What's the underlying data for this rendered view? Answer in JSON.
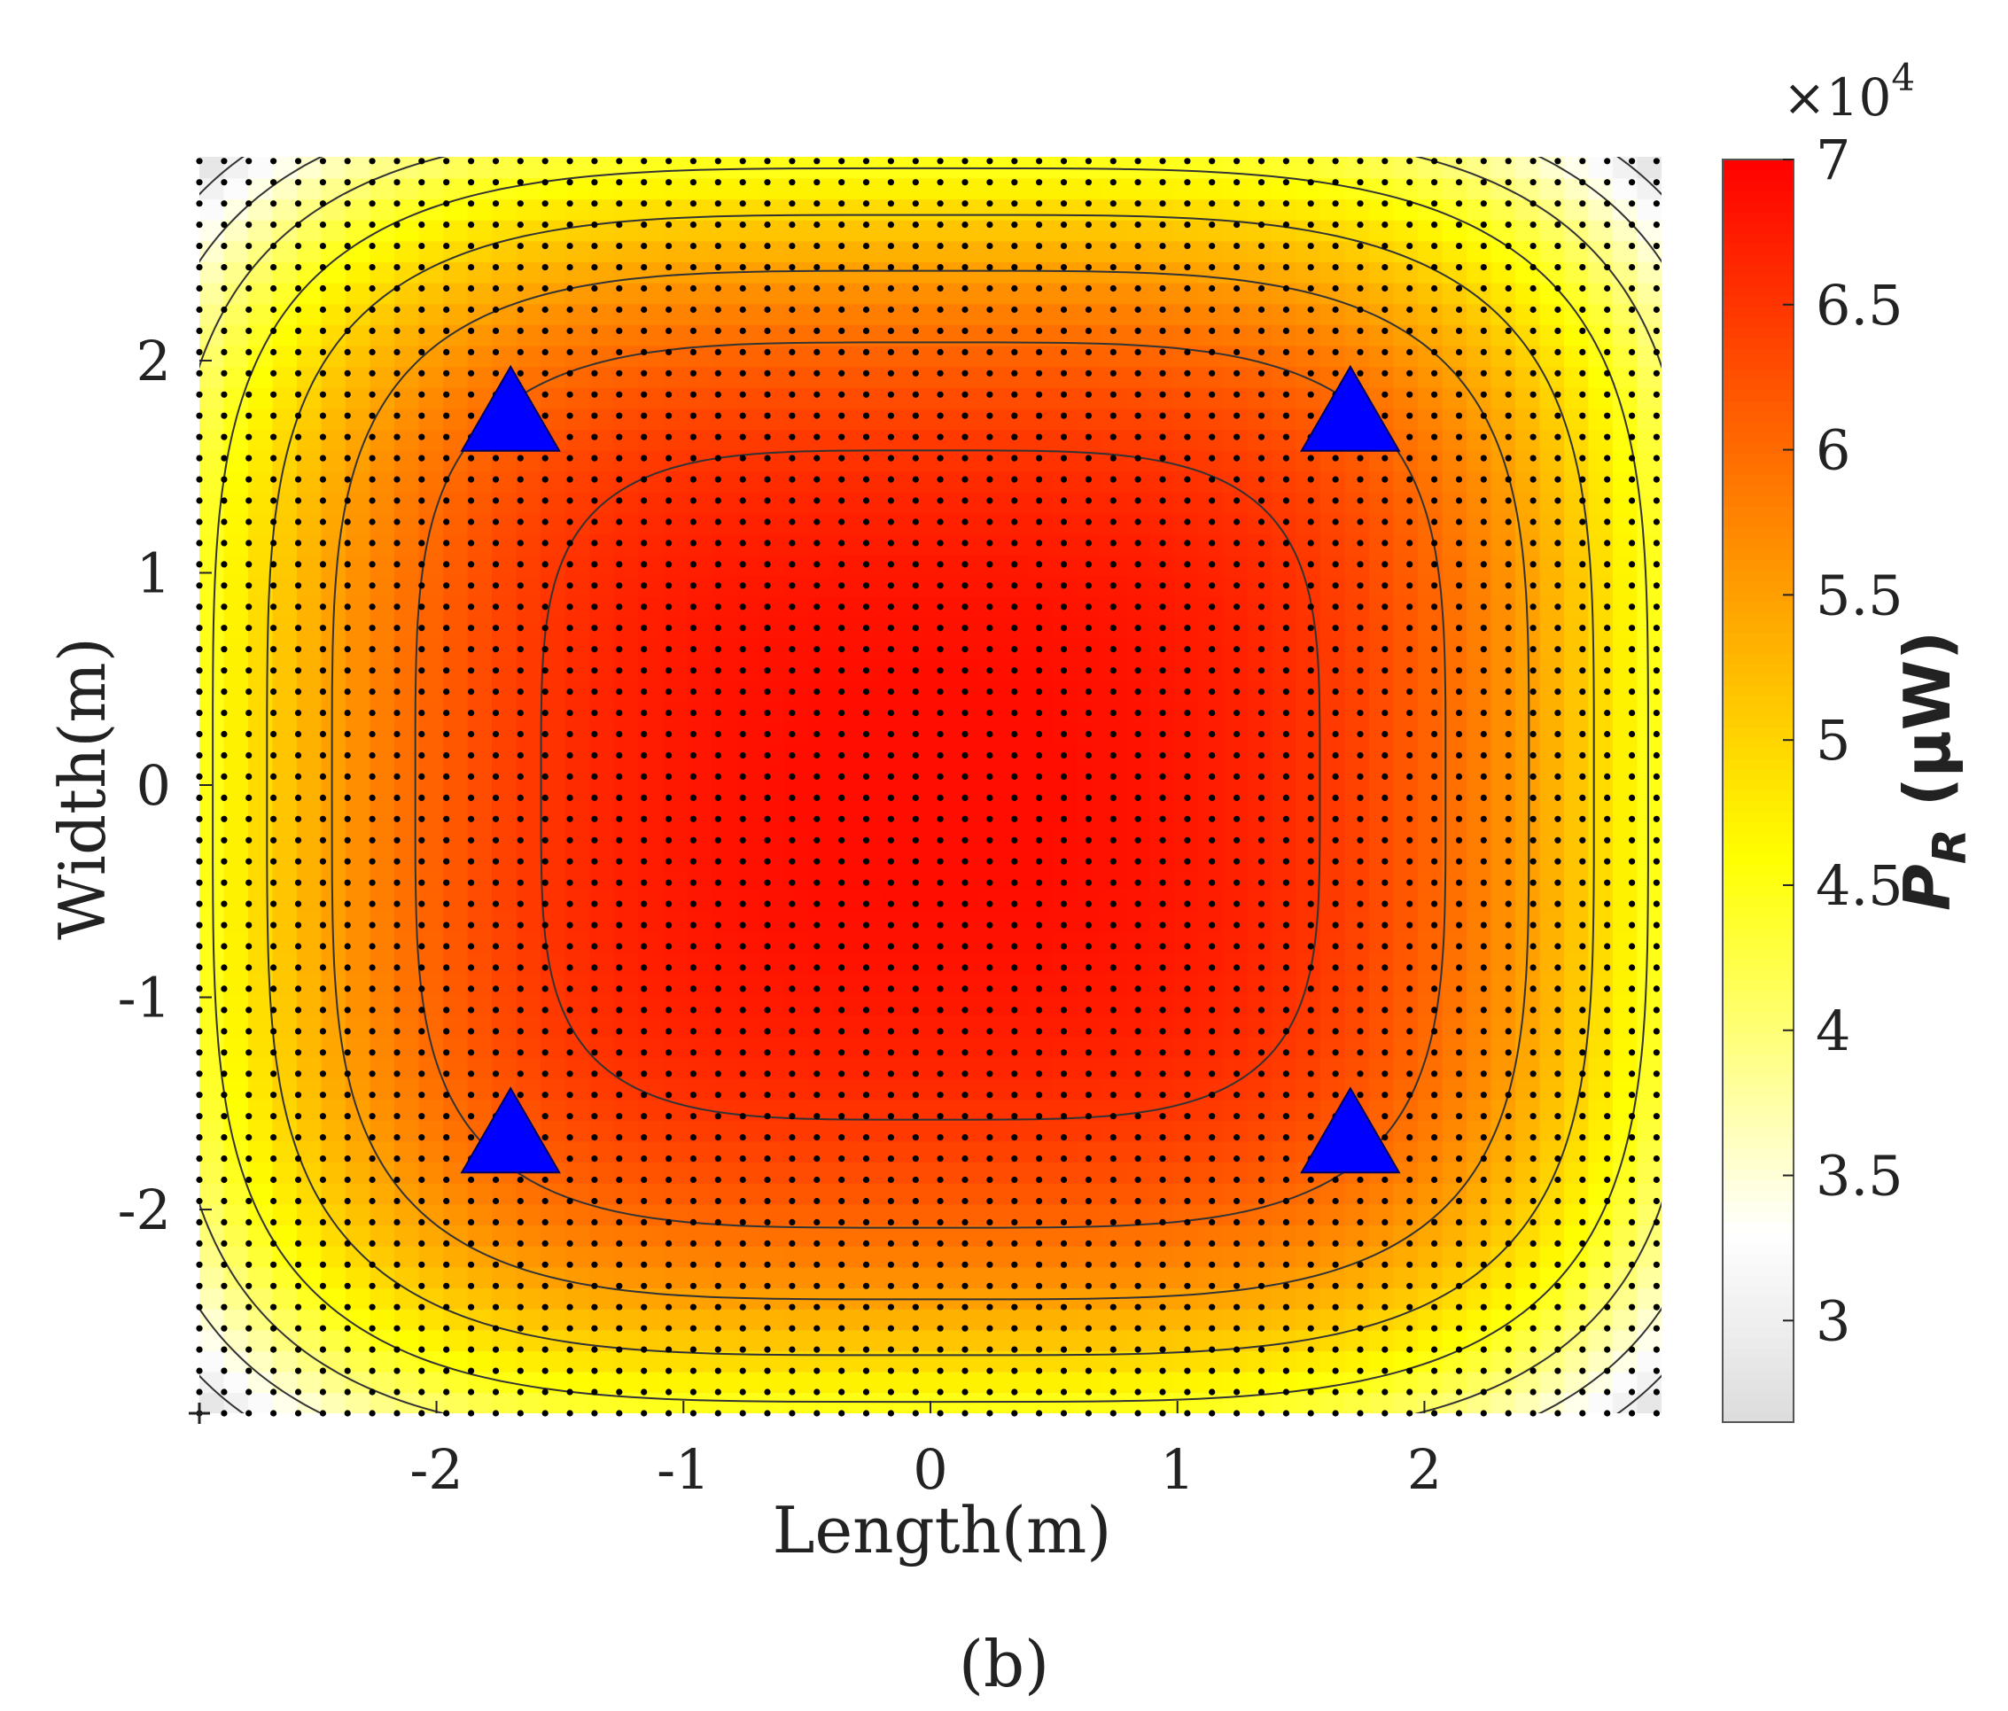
{
  "chart_data": {
    "type": "heatmap",
    "panel_label": "(b)",
    "xlabel": "Length(m)",
    "ylabel": "Width(m)",
    "xlim": [
      -2.96,
      2.96
    ],
    "ylim": [
      -2.96,
      2.96
    ],
    "x_ticks": [
      -2,
      -1,
      0,
      1,
      2
    ],
    "y_ticks": [
      2,
      1,
      0,
      -1,
      -2
    ],
    "x_tick_labels": [
      "-2",
      "-1",
      "0",
      "1",
      "2"
    ],
    "y_tick_labels": [
      "2",
      "1",
      "0",
      "-1",
      "-2"
    ],
    "colorbar": {
      "label_main": "P",
      "label_sub": "R",
      "label_unit": " (μW)",
      "exponent_label": "×10",
      "exponent_power": "4",
      "range": [
        2.65,
        7.0
      ],
      "ticks": [
        7,
        6.5,
        6,
        5.5,
        5,
        4.5,
        4,
        3.5,
        3
      ],
      "tick_labels": [
        "7",
        "6.5",
        "6",
        "5.5",
        "5",
        "4.5",
        "4",
        "3.5",
        "3"
      ],
      "colormap": [
        {
          "value": 2.65,
          "color": "#dcdcdc"
        },
        {
          "value": 3.3,
          "color": "#ffffff"
        },
        {
          "value": 4.6,
          "color": "#ffff00"
        },
        {
          "value": 5.8,
          "color": "#ff8000"
        },
        {
          "value": 7.0,
          "color": "#ff0000"
        }
      ]
    },
    "contour_levels": [
      3.0,
      3.5,
      4.0,
      4.5,
      5.0,
      5.5,
      6.0,
      6.5
    ],
    "field": {
      "peak_value": 6.88,
      "corner_value": 2.65
    },
    "grid_dots": {
      "spacing": 0.1,
      "color": "#000000"
    },
    "transmitters": {
      "marker": "triangle",
      "color": "#0000ff",
      "points": [
        {
          "x": -1.7,
          "y": 1.7
        },
        {
          "x": 1.7,
          "y": 1.7
        },
        {
          "x": -1.7,
          "y": -1.7
        },
        {
          "x": 1.7,
          "y": -1.7
        }
      ]
    }
  }
}
